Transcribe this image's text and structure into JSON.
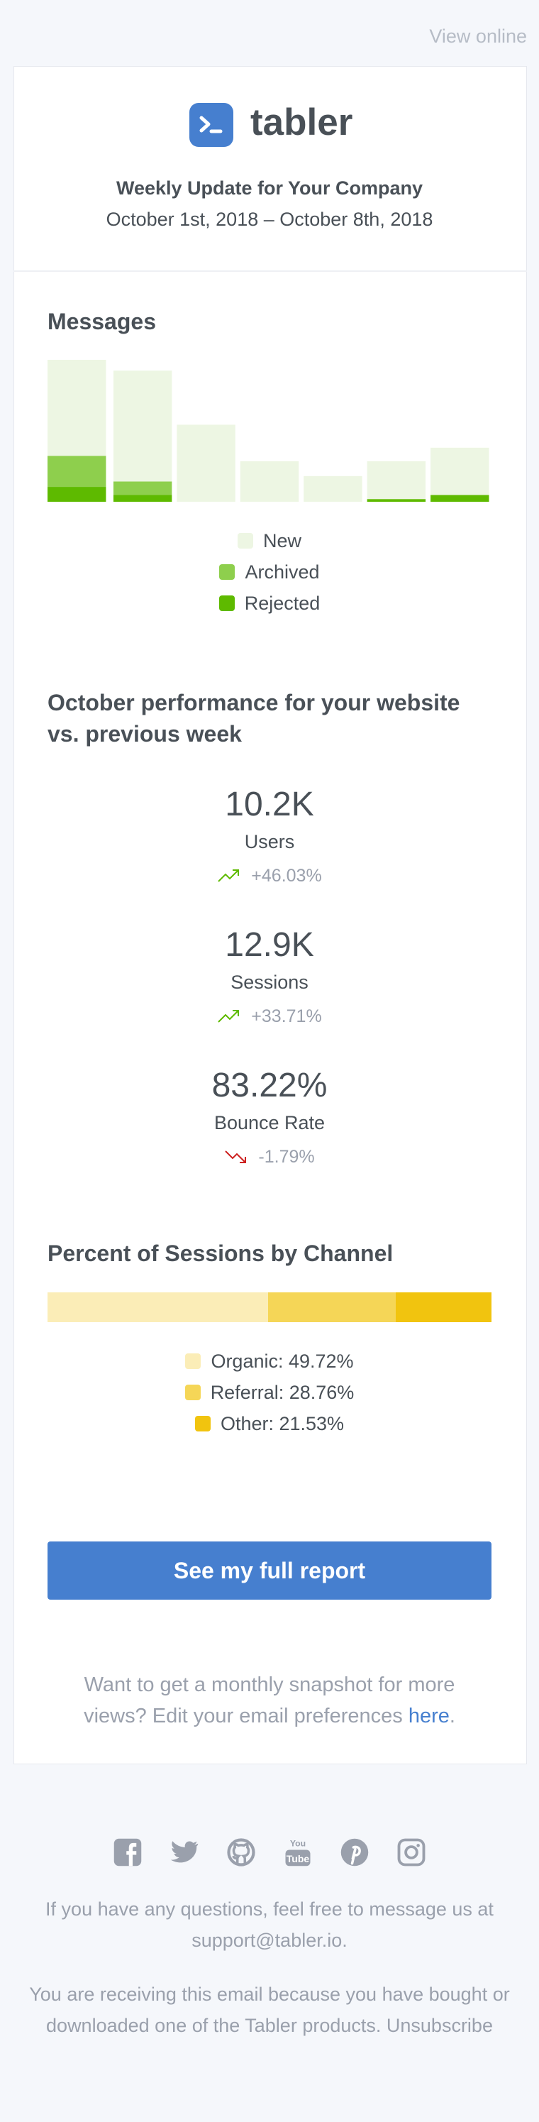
{
  "header": {
    "view_online": "View online",
    "brand": "tabler",
    "title": "Weekly Update for Your Company",
    "dates": "October 1st, 2018 – October 8th, 2018"
  },
  "chart_data": [
    {
      "type": "stacked-bar",
      "title": "Messages",
      "series": [
        {
          "name": "New",
          "color": "#edf6e3",
          "values": [
            71,
            82,
            57,
            30,
            19,
            28,
            35
          ]
        },
        {
          "name": "Archived",
          "color": "#8ecf4d",
          "values": [
            23,
            10,
            0,
            0,
            0,
            0,
            0
          ]
        },
        {
          "name": "Rejected",
          "color": "#5eba00",
          "values": [
            11,
            5,
            0,
            0,
            0,
            2,
            5
          ]
        }
      ]
    },
    {
      "type": "stacked-bar-horizontal",
      "title": "Percent of Sessions by Channel",
      "series": [
        {
          "color": "#fbedb7",
          "values": [
            49.72
          ],
          "value_labels": [
            "Organic: 49.72%"
          ]
        },
        {
          "color": "#f5d657",
          "values": [
            28.76
          ],
          "value_labels": [
            "Referral: 28.76%"
          ]
        },
        {
          "color": "#f1c40f",
          "values": [
            21.53
          ],
          "value_labels": [
            "Other: 21.53%"
          ]
        }
      ]
    }
  ],
  "performance": {
    "title": "October performance for your website vs. previous week",
    "stats": [
      {
        "value": "10.2K",
        "label": "Users",
        "change": "+46.03%",
        "trend": "up"
      },
      {
        "value": "12.9K",
        "label": "Sessions",
        "change": "+33.71%",
        "trend": "up"
      },
      {
        "value": "83.22%",
        "label": "Bounce Rate",
        "change": "-1.79%",
        "trend": "down"
      }
    ]
  },
  "button": "See my full report",
  "preferences": {
    "text": "Want to get a monthly snapshot for more views? Edit your email preferences",
    "link": "here",
    "end": "."
  },
  "footer": {
    "questions": "If you have any questions, feel free to message us at support@tabler.io.",
    "notice": "You are receiving this email because you have bought or downloaded one of the Tabler products.",
    "unsubscribe": "Unsubscribe"
  }
}
